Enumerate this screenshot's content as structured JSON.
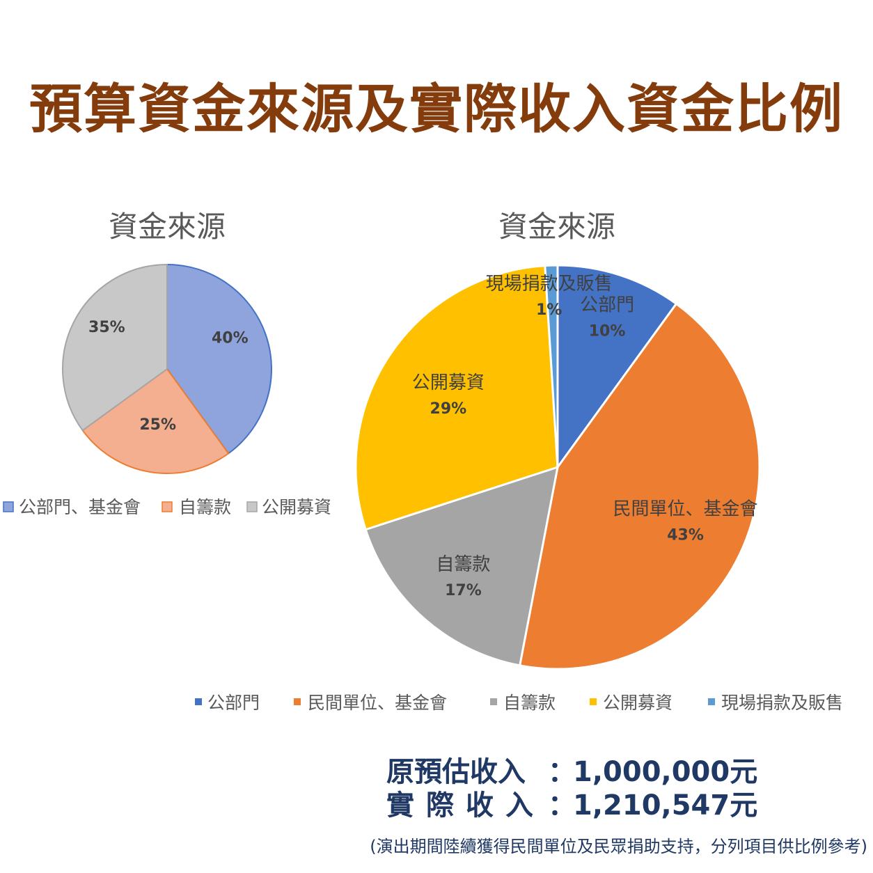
{
  "title": "預算資金來源及實際收入資金比例",
  "chart_data": [
    {
      "type": "pie",
      "title": "資金來源",
      "categories": [
        "公部門、基金會",
        "自籌款",
        "公開募資"
      ],
      "values": [
        40,
        25,
        35
      ],
      "data_labels": [
        "40%",
        "25%",
        "35%"
      ],
      "colors": [
        "#8fa4dc",
        "#f4af90",
        "#c8c8c8"
      ],
      "stroke_colors": [
        "#4472c4",
        "#ed7d31",
        "#a5a5a5"
      ],
      "legend": "bottom"
    },
    {
      "type": "pie",
      "title": "資金來源",
      "categories": [
        "公部門",
        "民間單位、基金會",
        "自籌款",
        "公開募資",
        "現場捐款及販售"
      ],
      "values": [
        10,
        43,
        17,
        29,
        1
      ],
      "data_labels": [
        "10%",
        "43%",
        "17%",
        "29%",
        "1%"
      ],
      "colors": [
        "#4472c4",
        "#ed7d31",
        "#a5a5a5",
        "#ffc000",
        "#5b9bd5"
      ],
      "legend": "bottom"
    }
  ],
  "summary": {
    "estimated_label": "原預估收入",
    "estimated_colon": "：",
    "estimated_value": "1,000,000元",
    "actual_label": "實際收入",
    "actual_colon": "：",
    "actual_value": "1,210,547元",
    "note": "(演出期間陸續獲得民間單位及民眾捐助支持，分列項目供比例參考)"
  }
}
